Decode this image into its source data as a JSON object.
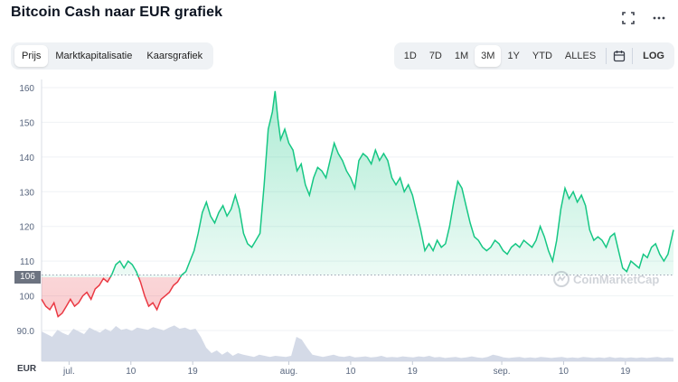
{
  "header": {
    "title": "Bitcoin Cash naar EUR grafiek"
  },
  "tabs": [
    {
      "label": "Prijs",
      "active": true
    },
    {
      "label": "Marktkapitalisatie",
      "active": false
    },
    {
      "label": "Kaarsgrafiek",
      "active": false
    }
  ],
  "ranges": [
    {
      "label": "1D",
      "active": false
    },
    {
      "label": "7D",
      "active": false
    },
    {
      "label": "1M",
      "active": false
    },
    {
      "label": "3M",
      "active": true
    },
    {
      "label": "1Y",
      "active": false
    },
    {
      "label": "YTD",
      "active": false
    },
    {
      "label": "ALLES",
      "active": false
    }
  ],
  "log_label": "LOG",
  "icons": {
    "fullscreen": "fullscreen-icon",
    "more": "more-icon",
    "calendar": "calendar-icon"
  },
  "watermark": "CoinMarketCap",
  "currency_label": "EUR",
  "current_marker": "106",
  "colors": {
    "up": "#16c784",
    "down": "#ea3943",
    "volume": "#cfd6e4",
    "grid": "#eff2f5"
  },
  "chart_data": {
    "type": "area",
    "title": "Bitcoin Cash naar EUR grafiek",
    "xlabel": "",
    "ylabel": "EUR",
    "ylim": [
      86,
      162
    ],
    "yticks": [
      90.0,
      100,
      110,
      120,
      130,
      140,
      150,
      160
    ],
    "ytick_labels": [
      "90.0",
      "100",
      "110",
      "120",
      "130",
      "140",
      "150",
      "160"
    ],
    "baseline": 106,
    "xtick_labels": [
      "jul.",
      "10",
      "19",
      "aug.",
      "10",
      "19",
      "sep.",
      "10",
      "19"
    ],
    "x_span_days": 92,
    "xtick_days": [
      4,
      13,
      22,
      36,
      45,
      54,
      67,
      76,
      85
    ],
    "grid": true,
    "series": [
      {
        "kind": "price",
        "points": [
          [
            0,
            99
          ],
          [
            0.6,
            97
          ],
          [
            1.2,
            96
          ],
          [
            1.8,
            98
          ],
          [
            2.4,
            94
          ],
          [
            3,
            95
          ],
          [
            3.6,
            97
          ],
          [
            4.2,
            99
          ],
          [
            4.8,
            97
          ],
          [
            5.4,
            98
          ],
          [
            6,
            100
          ],
          [
            6.6,
            101
          ],
          [
            7.2,
            99
          ],
          [
            7.8,
            102
          ],
          [
            8.4,
            103
          ],
          [
            9,
            105
          ],
          [
            9.6,
            104
          ],
          [
            10.2,
            106
          ],
          [
            10.8,
            109
          ],
          [
            11.4,
            110
          ],
          [
            12,
            108
          ],
          [
            12.6,
            110
          ],
          [
            13.2,
            109
          ],
          [
            13.8,
            107
          ],
          [
            14.4,
            104
          ],
          [
            15,
            100
          ],
          [
            15.6,
            97
          ],
          [
            16.2,
            98
          ],
          [
            16.8,
            96
          ],
          [
            17.4,
            99
          ],
          [
            18,
            100
          ],
          [
            18.6,
            101
          ],
          [
            19.2,
            103
          ],
          [
            19.8,
            104
          ],
          [
            20.4,
            106
          ],
          [
            21,
            107
          ],
          [
            21.6,
            110
          ],
          [
            22.2,
            113
          ],
          [
            22.8,
            118
          ],
          [
            23.4,
            124
          ],
          [
            24,
            127
          ],
          [
            24.6,
            123
          ],
          [
            25.2,
            121
          ],
          [
            25.8,
            124
          ],
          [
            26.4,
            126
          ],
          [
            27,
            123
          ],
          [
            27.6,
            125
          ],
          [
            28.2,
            129
          ],
          [
            28.8,
            125
          ],
          [
            29.4,
            118
          ],
          [
            30,
            115
          ],
          [
            30.6,
            114
          ],
          [
            31.2,
            116
          ],
          [
            31.8,
            118
          ],
          [
            32.4,
            132
          ],
          [
            33,
            148
          ],
          [
            33.6,
            153
          ],
          [
            34,
            159
          ],
          [
            34.4,
            151
          ],
          [
            34.8,
            145
          ],
          [
            35.4,
            148
          ],
          [
            36,
            144
          ],
          [
            36.6,
            142
          ],
          [
            37.2,
            136
          ],
          [
            37.8,
            138
          ],
          [
            38.4,
            132
          ],
          [
            39,
            129
          ],
          [
            39.6,
            134
          ],
          [
            40.2,
            137
          ],
          [
            40.8,
            136
          ],
          [
            41.4,
            134
          ],
          [
            42,
            139
          ],
          [
            42.6,
            144
          ],
          [
            43.2,
            141
          ],
          [
            43.8,
            139
          ],
          [
            44.4,
            136
          ],
          [
            45,
            134
          ],
          [
            45.6,
            131
          ],
          [
            46.2,
            139
          ],
          [
            46.8,
            141
          ],
          [
            47.4,
            140
          ],
          [
            48,
            138
          ],
          [
            48.6,
            142
          ],
          [
            49.2,
            139
          ],
          [
            49.8,
            141
          ],
          [
            50.4,
            139
          ],
          [
            51,
            134
          ],
          [
            51.6,
            132
          ],
          [
            52.2,
            134
          ],
          [
            52.8,
            130
          ],
          [
            53.4,
            132
          ],
          [
            54,
            129
          ],
          [
            54.6,
            124
          ],
          [
            55.2,
            119
          ],
          [
            55.8,
            113
          ],
          [
            56.4,
            115
          ],
          [
            57,
            113
          ],
          [
            57.6,
            116
          ],
          [
            58.2,
            114
          ],
          [
            58.8,
            115
          ],
          [
            59.4,
            120
          ],
          [
            60,
            127
          ],
          [
            60.6,
            133
          ],
          [
            61.2,
            131
          ],
          [
            61.8,
            126
          ],
          [
            62.4,
            121
          ],
          [
            63,
            117
          ],
          [
            63.6,
            116
          ],
          [
            64.2,
            114
          ],
          [
            64.8,
            113
          ],
          [
            65.4,
            114
          ],
          [
            66,
            116
          ],
          [
            66.6,
            115
          ],
          [
            67.2,
            113
          ],
          [
            67.8,
            112
          ],
          [
            68.4,
            114
          ],
          [
            69,
            115
          ],
          [
            69.6,
            114
          ],
          [
            70.2,
            116
          ],
          [
            70.8,
            115
          ],
          [
            71.4,
            114
          ],
          [
            72,
            116
          ],
          [
            72.6,
            120
          ],
          [
            73.2,
            117
          ],
          [
            73.8,
            113
          ],
          [
            74.4,
            110
          ],
          [
            75,
            116
          ],
          [
            75.6,
            125
          ],
          [
            76.2,
            131
          ],
          [
            76.8,
            128
          ],
          [
            77.4,
            130
          ],
          [
            78,
            127
          ],
          [
            78.6,
            129
          ],
          [
            79.2,
            126
          ],
          [
            79.8,
            119
          ],
          [
            80.4,
            116
          ],
          [
            81,
            117
          ],
          [
            81.6,
            116
          ],
          [
            82.2,
            114
          ],
          [
            82.8,
            117
          ],
          [
            83.4,
            118
          ],
          [
            84,
            113
          ],
          [
            84.6,
            108
          ],
          [
            85.2,
            107
          ],
          [
            85.8,
            110
          ],
          [
            86.4,
            109
          ],
          [
            87,
            108
          ],
          [
            87.6,
            112
          ],
          [
            88.2,
            111
          ],
          [
            88.8,
            114
          ],
          [
            89.4,
            115
          ],
          [
            90,
            112
          ],
          [
            90.6,
            110
          ],
          [
            91.2,
            112
          ],
          [
            92,
            119
          ]
        ]
      },
      {
        "kind": "volume",
        "relative": [
          0.55,
          0.5,
          0.45,
          0.58,
          0.52,
          0.48,
          0.6,
          0.55,
          0.5,
          0.62,
          0.57,
          0.53,
          0.6,
          0.55,
          0.65,
          0.58,
          0.6,
          0.56,
          0.62,
          0.6,
          0.58,
          0.63,
          0.6,
          0.57,
          0.62,
          0.66,
          0.6,
          0.62,
          0.58,
          0.6,
          0.45,
          0.25,
          0.15,
          0.2,
          0.12,
          0.18,
          0.1,
          0.15,
          0.12,
          0.1,
          0.08,
          0.12,
          0.1,
          0.08,
          0.1,
          0.09,
          0.08,
          0.1,
          0.45,
          0.4,
          0.25,
          0.12,
          0.1,
          0.08,
          0.1,
          0.12,
          0.09,
          0.08,
          0.1,
          0.07,
          0.08,
          0.09,
          0.07,
          0.08,
          0.1,
          0.07,
          0.08,
          0.07,
          0.09,
          0.08,
          0.07,
          0.09,
          0.08,
          0.1,
          0.07,
          0.08,
          0.06,
          0.07,
          0.08,
          0.06,
          0.07,
          0.09,
          0.07,
          0.06,
          0.08,
          0.12,
          0.1,
          0.07,
          0.06,
          0.07,
          0.08,
          0.06,
          0.07,
          0.06,
          0.08,
          0.07,
          0.06,
          0.07,
          0.08,
          0.06,
          0.07,
          0.06,
          0.08,
          0.07,
          0.06,
          0.07,
          0.06,
          0.08,
          0.06,
          0.07,
          0.06,
          0.07,
          0.06,
          0.07,
          0.06,
          0.07,
          0.08,
          0.06,
          0.07,
          0.06
        ]
      }
    ]
  }
}
